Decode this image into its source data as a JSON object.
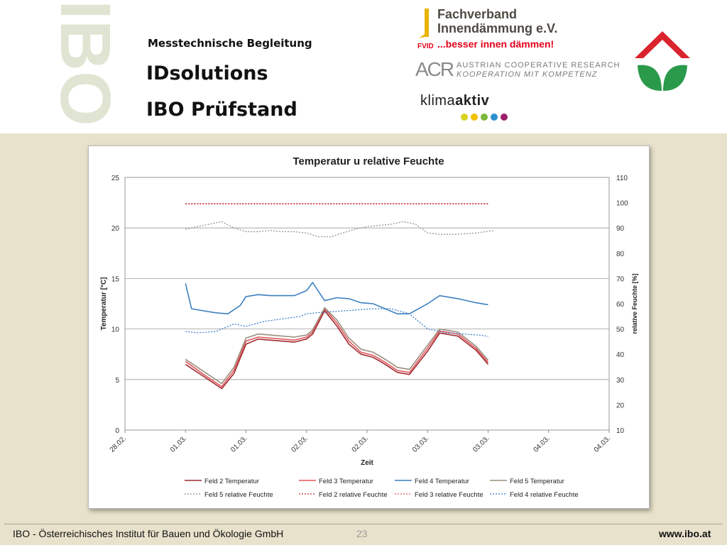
{
  "header": {
    "watermark": "IBO",
    "subtitle": "Messtechnische Begleitung",
    "title_line1": "IDsolutions",
    "title_line2": "IBO Prüfstand"
  },
  "logos": {
    "fvid": {
      "line1": "Fachverband",
      "line2": "Innendämmung e.V.",
      "mark": "FVID",
      "tagline": "...besser innen dämmen!"
    },
    "acr": {
      "mark": "ACR",
      "line1": "AUSTRIAN COOPERATIVE RESEARCH",
      "line2": "KOOPERATION MIT KOMPETENZ"
    },
    "klima": {
      "part1": "klima",
      "part2": "aktiv"
    },
    "house_icon": "house-leaf-icon"
  },
  "colors": {
    "feld2_temp": "#9e2a2f",
    "feld3_temp": "#e0555a",
    "feld4_temp": "#3c7fc0",
    "feld5_temp": "#9a8f7e",
    "feld5_rh": "#8c8c8c",
    "feld2_rh": "#c0262c",
    "feld3_rh": "#d8595d",
    "feld4_rh": "#2e74c8"
  },
  "chart_data": {
    "type": "line",
    "title": "Temperatur u relative Feuchte",
    "xlabel": "Zeit",
    "ylabel": "Temperatur [°C]",
    "y2label": "relative Feuchte [%]",
    "ylim": [
      0,
      25
    ],
    "y2lim": [
      10,
      110
    ],
    "yticks": [
      "0",
      "5",
      "10",
      "15",
      "20",
      "25"
    ],
    "y2ticks": [
      "10",
      "20",
      "30",
      "40",
      "50",
      "60",
      "70",
      "80",
      "90",
      "100",
      "110"
    ],
    "xticks": [
      "28.02.",
      "01.03.",
      "01.03.",
      "02.03.",
      "02.03.",
      "03.03.",
      "03.03.",
      "04.03.",
      "04.03."
    ],
    "grid": true,
    "legend_position": "bottom",
    "series": [
      {
        "name": "Feld 2 Temperatur",
        "axis": "left",
        "style": "solid",
        "x": [
          1.0,
          1.3,
          1.6,
          1.8,
          2.0,
          2.2,
          2.4,
          2.6,
          2.8,
          3.0,
          3.1,
          3.3,
          3.5,
          3.7,
          3.9,
          4.1,
          4.3,
          4.5,
          4.7,
          5.0,
          5.2,
          5.5,
          5.8,
          6.0
        ],
        "y": [
          6.5,
          5.3,
          4.1,
          5.6,
          8.5,
          9.0,
          8.9,
          8.8,
          8.7,
          9.0,
          9.5,
          11.8,
          10.3,
          8.5,
          7.5,
          7.2,
          6.5,
          5.7,
          5.5,
          7.8,
          9.6,
          9.3,
          7.9,
          6.5
        ]
      },
      {
        "name": "Feld 3 Temperatur",
        "axis": "left",
        "style": "solid",
        "x": [
          1.0,
          1.3,
          1.6,
          1.8,
          2.0,
          2.2,
          2.4,
          2.6,
          2.8,
          3.0,
          3.1,
          3.3,
          3.5,
          3.7,
          3.9,
          4.1,
          4.3,
          4.5,
          4.7,
          5.0,
          5.2,
          5.5,
          5.8,
          6.0
        ],
        "y": [
          6.8,
          5.5,
          4.3,
          5.9,
          8.8,
          9.2,
          9.1,
          9.0,
          8.9,
          9.2,
          9.7,
          12.0,
          10.6,
          8.8,
          7.7,
          7.4,
          6.7,
          5.9,
          5.7,
          8.1,
          9.8,
          9.5,
          8.1,
          6.7
        ]
      },
      {
        "name": "Feld 4 Temperatur",
        "axis": "left",
        "style": "solid",
        "x": [
          1.0,
          1.1,
          1.3,
          1.5,
          1.7,
          1.9,
          2.0,
          2.2,
          2.4,
          2.6,
          2.8,
          3.0,
          3.1,
          3.3,
          3.5,
          3.7,
          3.9,
          4.1,
          4.3,
          4.5,
          4.7,
          5.0,
          5.2,
          5.5,
          5.8,
          6.0
        ],
        "y": [
          14.5,
          12.0,
          11.8,
          11.6,
          11.5,
          12.3,
          13.2,
          13.4,
          13.3,
          13.3,
          13.3,
          13.8,
          14.6,
          12.8,
          13.1,
          13.0,
          12.6,
          12.5,
          12.0,
          11.5,
          11.5,
          12.5,
          13.3,
          13.0,
          12.6,
          12.4
        ]
      },
      {
        "name": "Feld 5 Temperatur",
        "axis": "left",
        "style": "solid",
        "x": [
          1.0,
          1.3,
          1.6,
          1.8,
          2.0,
          2.2,
          2.4,
          2.6,
          2.8,
          3.0,
          3.1,
          3.3,
          3.5,
          3.7,
          3.9,
          4.1,
          4.3,
          4.5,
          4.7,
          5.0,
          5.2,
          5.5,
          5.8,
          6.0
        ],
        "y": [
          7.0,
          5.8,
          4.6,
          6.2,
          9.1,
          9.5,
          9.4,
          9.3,
          9.2,
          9.4,
          9.9,
          12.1,
          10.9,
          9.1,
          8.0,
          7.7,
          7.0,
          6.2,
          6.0,
          8.4,
          10.0,
          9.7,
          8.3,
          6.9
        ]
      },
      {
        "name": "Feld 5 relative Feuchte",
        "axis": "right",
        "style": "dashed",
        "x": [
          1.0,
          1.3,
          1.6,
          1.8,
          2.0,
          2.2,
          2.4,
          2.6,
          2.8,
          3.0,
          3.2,
          3.4,
          3.6,
          3.8,
          4.0,
          4.2,
          4.4,
          4.6,
          4.8,
          5.0,
          5.2,
          5.5,
          5.8,
          6.1
        ],
        "y": [
          89.5,
          91,
          92.5,
          90,
          88.5,
          88.5,
          89,
          88.5,
          88.5,
          88,
          86.5,
          86.5,
          88,
          89.5,
          90.5,
          91,
          91.5,
          92.5,
          91.5,
          88,
          87.5,
          87.5,
          88,
          89
        ]
      },
      {
        "name": "Feld 2 relative Feuchte",
        "axis": "right",
        "style": "dashed",
        "x": [
          1.0,
          1.5,
          2.0,
          2.5,
          3.0,
          3.5,
          4.0,
          4.5,
          5.0,
          5.5,
          6.0
        ],
        "y": [
          99.5,
          99.5,
          99.5,
          99.5,
          99.5,
          99.5,
          99.5,
          99.5,
          99.5,
          99.5,
          99.5
        ]
      },
      {
        "name": "Feld 3 relative Feuchte",
        "axis": "right",
        "style": "dashed",
        "x": [
          1.0,
          1.5,
          2.0,
          2.5,
          3.0,
          3.5,
          4.0,
          4.5,
          5.0,
          5.5,
          6.0
        ],
        "y": [
          99.7,
          99.7,
          99.7,
          99.7,
          99.7,
          99.7,
          99.7,
          99.7,
          99.7,
          99.7,
          99.7
        ]
      },
      {
        "name": "Feld 4 relative Feuchte",
        "axis": "right",
        "style": "dashed",
        "x": [
          1.0,
          1.2,
          1.5,
          1.8,
          2.0,
          2.3,
          2.6,
          2.9,
          3.0,
          3.2,
          3.5,
          3.8,
          4.1,
          4.4,
          4.7,
          5.0,
          5.3,
          5.6,
          5.9,
          6.0
        ],
        "y": [
          49,
          48.5,
          49,
          52,
          51,
          53,
          54,
          55,
          56,
          56.5,
          57,
          57.5,
          58,
          58,
          56,
          50,
          48.5,
          48,
          47.5,
          47
        ]
      }
    ]
  },
  "footer": {
    "org": "IBO - Österreichisches Institut für Bauen und Ökologie GmbH",
    "page": "23",
    "url": "www.ibo.at"
  }
}
